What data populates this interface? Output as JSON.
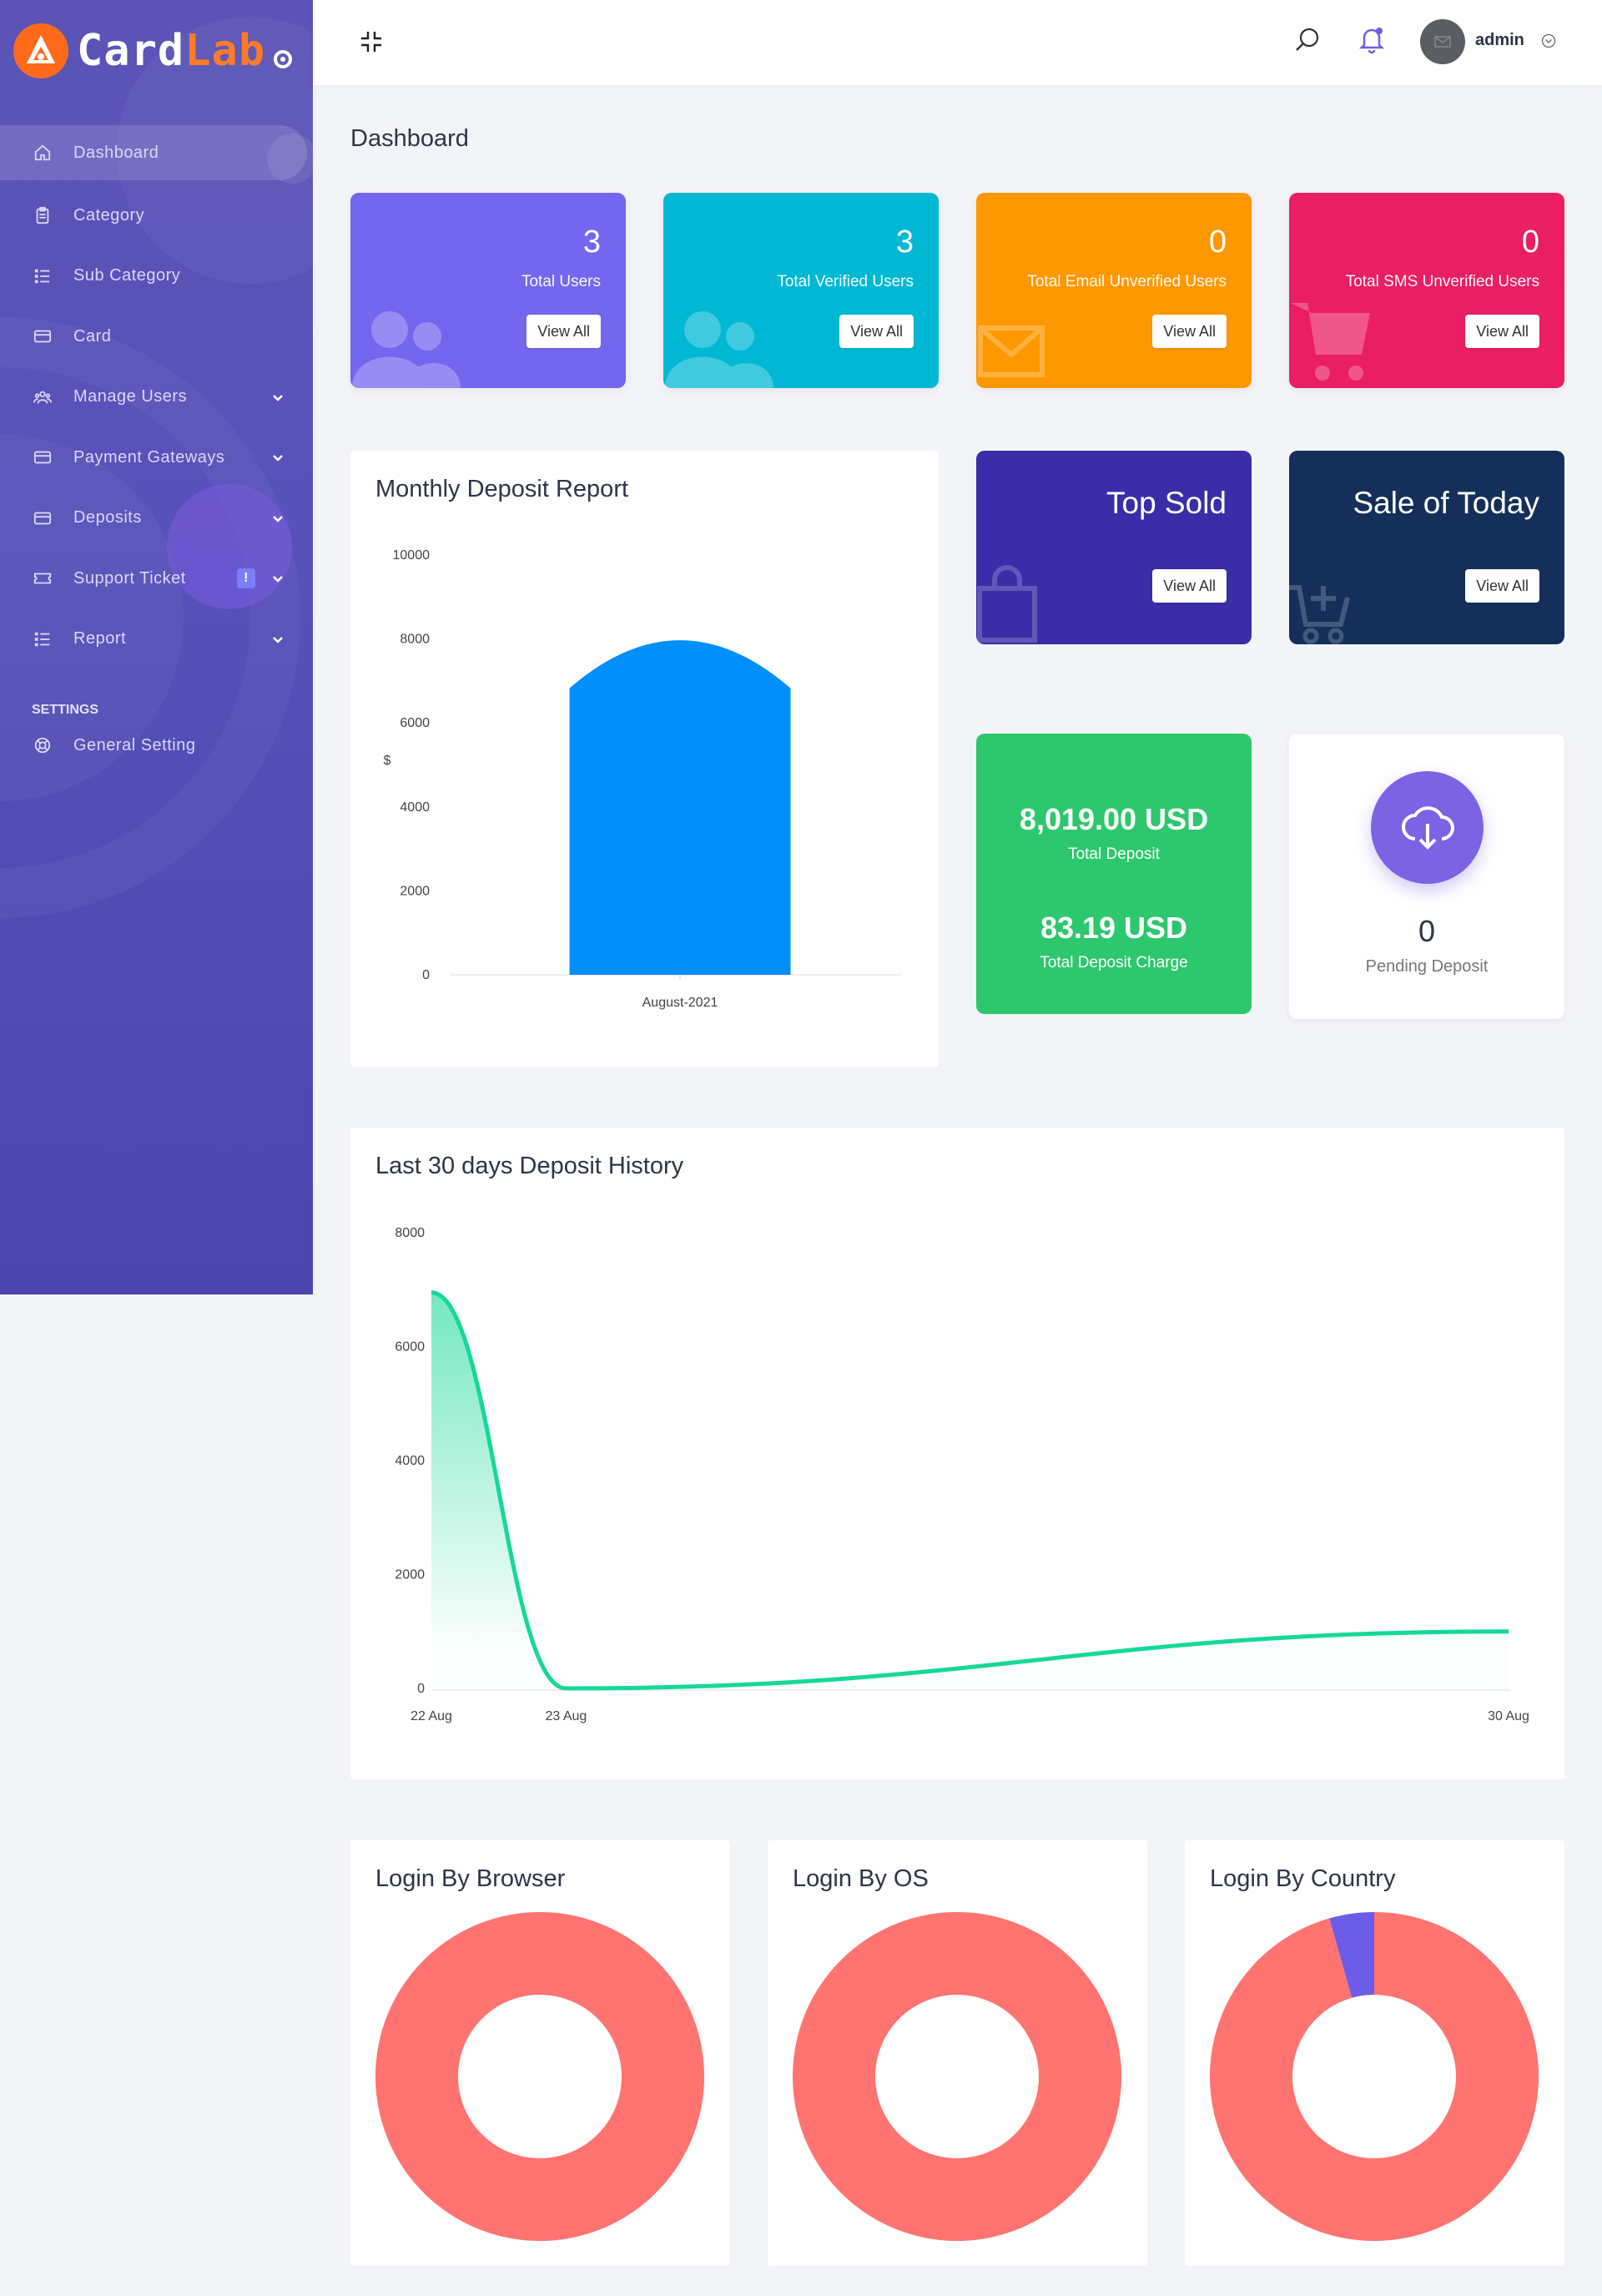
{
  "brand": {
    "part1": "Card",
    "part2": "Lab"
  },
  "sidebar": {
    "items": [
      {
        "label": "Dashboard",
        "icon": "home-icon",
        "active": true
      },
      {
        "label": "Category",
        "icon": "clipboard-icon"
      },
      {
        "label": "Sub Category",
        "icon": "list-icon"
      },
      {
        "label": "Card",
        "icon": "credit-card-icon"
      },
      {
        "label": "Manage Users",
        "icon": "users-icon",
        "dropdown": true
      },
      {
        "label": "Payment Gateways",
        "icon": "credit-card-icon",
        "dropdown": true
      },
      {
        "label": "Deposits",
        "icon": "credit-card-icon",
        "dropdown": true
      },
      {
        "label": "Support Ticket",
        "icon": "ticket-icon",
        "dropdown": true,
        "badge": "!"
      },
      {
        "label": "Report",
        "icon": "list-icon",
        "dropdown": true
      }
    ],
    "settings_heading": "SETTINGS",
    "settings_items": [
      {
        "label": "General Setting",
        "icon": "lifebuoy-icon"
      }
    ]
  },
  "topbar": {
    "username": "admin"
  },
  "page_title": "Dashboard",
  "stats": [
    {
      "value": "3",
      "label": "Total Users",
      "button": "View All",
      "color": "#7367f0",
      "icon": "users-icon"
    },
    {
      "value": "3",
      "label": "Total Verified Users",
      "button": "View All",
      "color": "#00b8d4",
      "icon": "users-icon"
    },
    {
      "value": "0",
      "label": "Total Email Unverified Users",
      "button": "View All",
      "color": "#ff9800",
      "icon": "envelope-icon"
    },
    {
      "value": "0",
      "label": "Total SMS Unverified Users",
      "button": "View All",
      "color": "#ea1e63",
      "icon": "cart-icon"
    }
  ],
  "promos": [
    {
      "title": "Top Sold",
      "button": "View All",
      "color": "#3a2ea8",
      "icon": "shopping-bag-icon"
    },
    {
      "title": "Sale of Today",
      "button": "View All",
      "color": "#14305a",
      "icon": "cart-plus-icon"
    }
  ],
  "deposit": {
    "total_amount": "8,019.00 USD",
    "total_label": "Total Deposit",
    "charge_amount": "83.19 USD",
    "charge_label": "Total Deposit Charge",
    "color": "#2dc76d"
  },
  "pending": {
    "count": "0",
    "label": "Pending Deposit"
  },
  "monthly_chart": {
    "title": "Monthly Deposit Report",
    "y_unit_label": "$"
  },
  "history_chart": {
    "title": "Last 30 days Deposit History"
  },
  "login_charts": {
    "browser_title": "Login By Browser",
    "os_title": "Login By OS",
    "country_title": "Login By Country"
  },
  "chart_data": [
    {
      "type": "bar",
      "title": "Monthly Deposit Report",
      "categories": [
        "August-2021"
      ],
      "series": [
        {
          "values": [
            8019
          ],
          "color": "#008ffb"
        }
      ],
      "ylabel": "$",
      "ylim": [
        0,
        10000
      ],
      "yticks": [
        0,
        2000,
        4000,
        6000,
        8000,
        10000
      ],
      "grid": false
    },
    {
      "type": "area",
      "title": "Last 30 days Deposit History",
      "x": [
        "22 Aug",
        "23 Aug",
        "30 Aug"
      ],
      "x_days": [
        22,
        23,
        30
      ],
      "series": [
        {
          "values": [
            6950,
            0,
            1000
          ],
          "color": "#16d898"
        }
      ],
      "ylim": [
        0,
        8000
      ],
      "yticks": [
        0,
        2000,
        4000,
        6000,
        8000
      ],
      "grid": false
    },
    {
      "type": "pie",
      "title": "Login By Browser",
      "values": [
        1
      ],
      "colors": [
        "#ff7370"
      ],
      "donut": true
    },
    {
      "type": "pie",
      "title": "Login By OS",
      "values": [
        1
      ],
      "colors": [
        "#ff7370"
      ],
      "donut": true
    },
    {
      "type": "pie",
      "title": "Login By Country",
      "values": [
        0.956,
        0.044
      ],
      "colors": [
        "#ff7370",
        "#6c5ce7"
      ],
      "donut": true
    }
  ]
}
